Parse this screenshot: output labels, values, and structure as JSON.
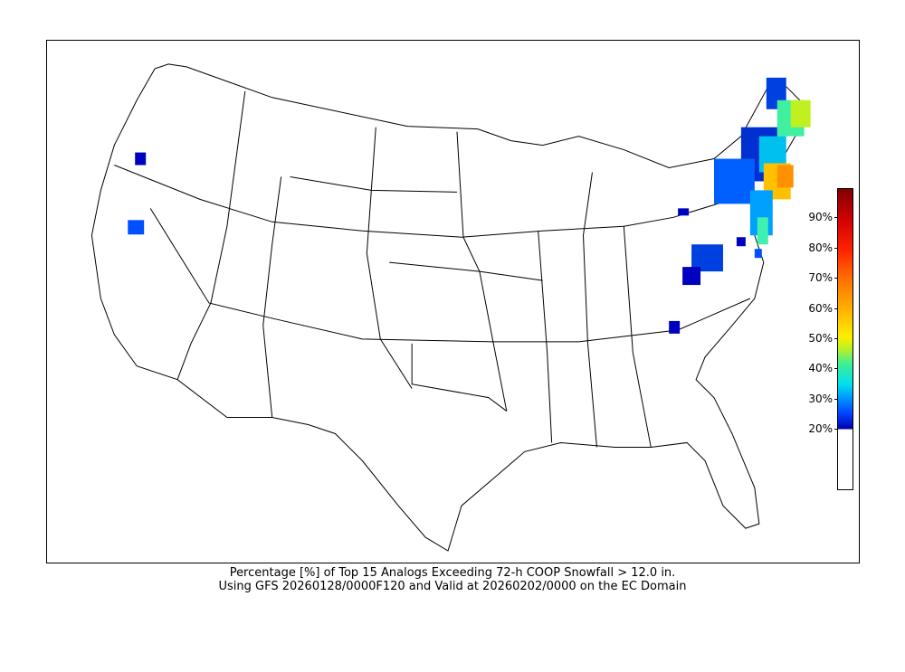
{
  "caption": {
    "line1": "Percentage [%] of Top 15 Analogs Exceeding 72-h COOP Snowfall > 12.0 in.",
    "line2": "Using GFS 20260128/0000F120 and Valid at 20260202/0000 on the EC Domain"
  },
  "colorbar": {
    "range": [
      0,
      100
    ],
    "min_shown": 20,
    "ticks": [
      "20%",
      "30%",
      "40%",
      "50%",
      "60%",
      "70%",
      "80%",
      "90%"
    ],
    "colormap": "jet"
  },
  "map": {
    "region": "Contiguous United States",
    "coastline_color": "#000000"
  }
}
